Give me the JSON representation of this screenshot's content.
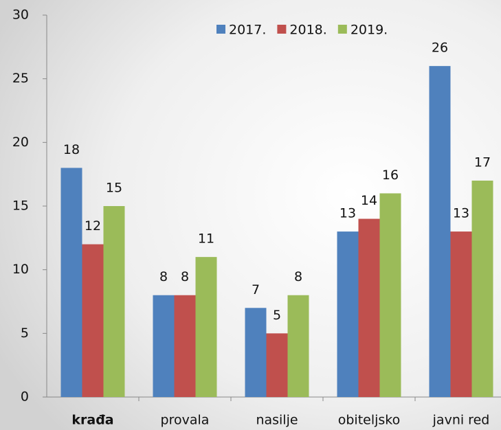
{
  "chart_data": {
    "type": "bar",
    "categories": [
      "krađa",
      "provala",
      "nasilje",
      "obiteljsko",
      "javni red"
    ],
    "series": [
      {
        "name": "2017.",
        "color": "#4f81bd",
        "values": [
          18,
          8,
          7,
          13,
          26
        ]
      },
      {
        "name": "2018.",
        "color": "#c0504d",
        "values": [
          12,
          8,
          5,
          14,
          13
        ]
      },
      {
        "name": "2019.",
        "color": "#9bbb59",
        "values": [
          15,
          11,
          8,
          16,
          17
        ]
      }
    ],
    "ylim": [
      0,
      30
    ],
    "yticks": [
      0,
      5,
      10,
      15,
      20,
      25,
      30
    ],
    "grid": false,
    "legend": "top"
  }
}
